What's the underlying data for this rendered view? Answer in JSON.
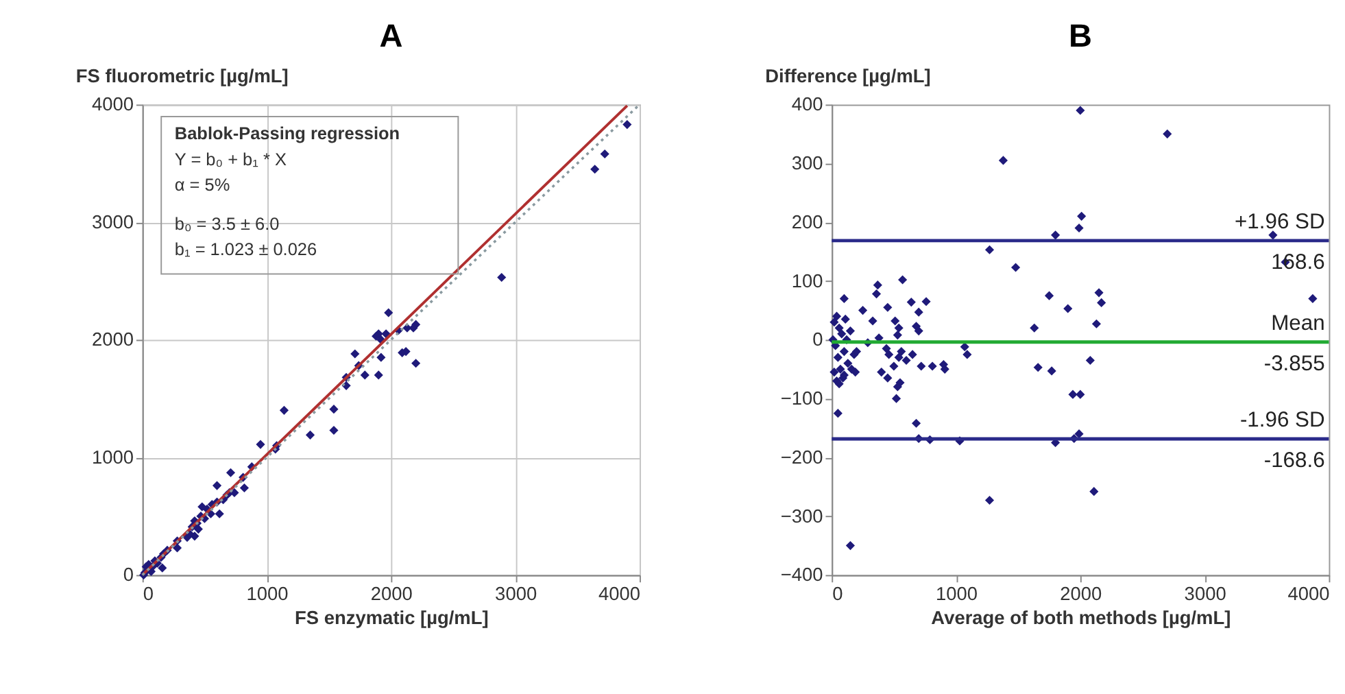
{
  "chart_data": [
    {
      "type": "scatter",
      "title": "A",
      "xlabel": "FS enzymatic [µg/mL]",
      "ylabel": "FS fluorometric [µg/mL]",
      "xlim": [
        0,
        4000
      ],
      "ylim": [
        0,
        4000
      ],
      "xticks": [
        0,
        1000,
        2000,
        3000,
        4000
      ],
      "yticks": [
        0,
        1000,
        2000,
        3000,
        4000
      ],
      "grid": true,
      "annotations": [
        "Bablok-Passing regression",
        "Y = b₀ + b₁ * X",
        "α = 5%",
        "b₀ = 3.5 ± 6.0",
        "b₁ = 1.023 ± 0.026"
      ],
      "series": [
        {
          "marker": "diamond",
          "color": "#1f1a7a",
          "x": [
            3900,
            3720,
            3640,
            2890,
            1980,
            2200,
            2180,
            2130,
            2060,
            1960,
            1900,
            1880,
            1920,
            2200,
            2120,
            2090,
            1920,
            1900,
            1790,
            1740,
            1710,
            1640,
            1640,
            1540,
            1540,
            1350,
            1140,
            1080,
            1070,
            950,
            880,
            810,
            820,
            710,
            740,
            700,
            650,
            600,
            620,
            560,
            520,
            480,
            470,
            440,
            420,
            400,
            420,
            360,
            280,
            280,
            200,
            170,
            150,
            120,
            90,
            20,
            10,
            30,
            50,
            100,
            160,
            70,
            550,
            600,
            680,
            500,
            450,
            380
          ],
          "values": [
            3830,
            3580,
            3450,
            2530,
            2230,
            2130,
            2100,
            2100,
            2080,
            2050,
            2050,
            2030,
            2000,
            1800,
            1900,
            1890,
            1850,
            1700,
            1700,
            1780,
            1880,
            1680,
            1610,
            1410,
            1230,
            1190,
            1400,
            1100,
            1070,
            1110,
            920,
            830,
            740,
            870,
            700,
            700,
            640,
            760,
            520,
            600,
            560,
            580,
            500,
            440,
            460,
            410,
            330,
            320,
            290,
            230,
            210,
            180,
            150,
            100,
            80,
            20,
            0,
            70,
            90,
            120,
            60,
            30,
            520,
            620,
            680,
            480,
            390,
            350
          ]
        },
        {
          "type": "line",
          "color": "#b03030",
          "line_style": "solid",
          "x": [
            0,
            3900
          ],
          "values": [
            0,
            3990
          ]
        },
        {
          "type": "line",
          "color": "#8a9aa0",
          "line_style": "dotted",
          "x": [
            0,
            4000
          ],
          "values": [
            0,
            4000
          ]
        }
      ]
    },
    {
      "type": "scatter",
      "title": "B",
      "xlabel": "Average of both methods [µg/mL]",
      "ylabel": "Difference [µg/mL]",
      "xlim": [
        0,
        4000
      ],
      "ylim": [
        -400,
        400
      ],
      "xticks": [
        0,
        1000,
        2000,
        3000,
        4000
      ],
      "yticks": [
        -400,
        -300,
        -200,
        -100,
        0,
        100,
        200,
        300,
        400
      ],
      "grid": false,
      "ref_lines": [
        {
          "axis": "y",
          "value": 168.6,
          "label": "+1.96 SD",
          "color": "#2a2a8a"
        },
        {
          "axis": "y",
          "value": -3.855,
          "label": "Mean",
          "color": "#22aa33"
        },
        {
          "axis": "y",
          "value": -168.6,
          "label": "-1.96 SD",
          "color": "#2a2a8a"
        }
      ],
      "annotations": [
        {
          "text": "168.6",
          "y": 168.6
        },
        {
          "text": "-3.855",
          "y": -3.855
        },
        {
          "text": "-168.6",
          "y": -168.6
        }
      ],
      "series": [
        {
          "marker": "diamond",
          "color": "#1f1a7a",
          "x": [
            2000,
            2700,
            1380,
            2010,
            1990,
            1800,
            3550,
            3650,
            1270,
            1480,
            570,
            370,
            360,
            1750,
            2150,
            2170,
            760,
            640,
            3870,
            100,
            250,
            450,
            1900,
            700,
            330,
            510,
            2130,
            540,
            1630,
            680,
            700,
            530,
            380,
            290,
            1070,
            1090,
            440,
            460,
            560,
            600,
            650,
            540,
            2080,
            720,
            810,
            900,
            910,
            1660,
            1770,
            400,
            450,
            500,
            530,
            550,
            520,
            1940,
            2000,
            680,
            700,
            790,
            1030,
            1800,
            1950,
            1990,
            50,
            1270,
            2110,
            150,
            20,
            40,
            60,
            80,
            30,
            50,
            70,
            100,
            120,
            20,
            40,
            60,
            90,
            150,
            180,
            200,
            160,
            190,
            110,
            10,
            130,
            100
          ],
          "values": [
            390,
            350,
            305,
            210,
            190,
            178,
            178,
            132,
            153,
            123,
            102,
            93,
            78,
            75,
            80,
            63,
            65,
            64,
            70,
            70,
            50,
            55,
            53,
            47,
            32,
            32,
            27,
            20,
            20,
            23,
            15,
            8,
            3,
            -5,
            -12,
            -25,
            -15,
            -25,
            -20,
            -35,
            -25,
            -30,
            -35,
            -45,
            -45,
            -42,
            -50,
            -47,
            -53,
            -55,
            -65,
            -45,
            -80,
            -73,
            -100,
            -93,
            -93,
            -142,
            -168,
            -170,
            -172,
            -175,
            -168,
            -160,
            -125,
            -273,
            -258,
            -350,
            30,
            40,
            20,
            10,
            -10,
            -30,
            -50,
            -20,
            0,
            -55,
            -70,
            -75,
            -65,
            15,
            -25,
            -20,
            -50,
            -55,
            35,
            0,
            -40,
            -60
          ]
        }
      ]
    }
  ]
}
